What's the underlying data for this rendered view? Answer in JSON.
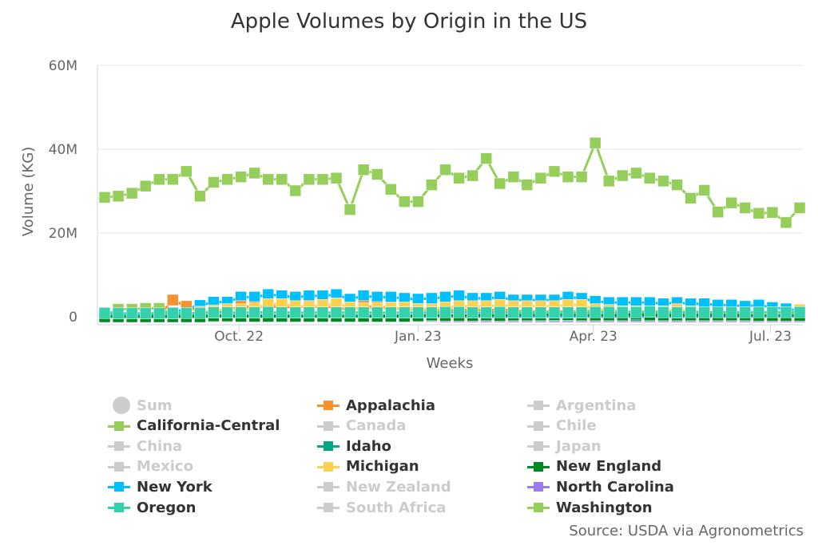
{
  "chart_data": {
    "type": "line",
    "title": "Apple Volumes by Origin in the US",
    "xlabel": "Weeks",
    "ylabel": "Volume (KG)",
    "ylim": [
      0,
      60
    ],
    "y_unit": "M",
    "y_ticks": [
      "0",
      "20M",
      "40M",
      "60M"
    ],
    "y_tick_values": [
      0,
      20,
      40,
      60
    ],
    "x_ticks": [
      {
        "label": "Oct. 22",
        "date": "2022-10-01"
      },
      {
        "label": "Jan. 23",
        "date": "2023-01-01"
      },
      {
        "label": "Apr. 23",
        "date": "2023-04-01"
      },
      {
        "label": "Jul. 23",
        "date": "2023-07-01"
      }
    ],
    "x_start": "2022-07-24",
    "x_interval": "weekly",
    "grid": "horizontal",
    "legend_placement": "bottom",
    "series": [
      {
        "name": "California-Central",
        "color": "#95ce5a",
        "values": [
          0.5,
          1.8,
          1.8,
          2.0,
          2.0,
          0.5,
          0,
          0,
          0,
          0,
          0,
          0,
          0,
          0,
          0,
          0,
          0,
          0,
          0,
          0,
          0,
          0,
          0,
          0,
          0,
          0,
          0,
          0,
          0,
          0,
          0,
          0,
          0,
          0,
          0,
          0,
          0,
          0,
          0,
          0,
          0,
          0,
          0,
          0,
          0,
          0,
          0,
          0,
          0,
          0,
          0,
          0
        ]
      },
      {
        "name": "New York",
        "color": "#00bfff",
        "values": [
          0.3,
          0.4,
          0.4,
          0.6,
          0.8,
          1.0,
          2.0,
          2.7,
          3.5,
          3.5,
          4.7,
          4.7,
          5.3,
          5.0,
          4.7,
          5.0,
          5.0,
          5.3,
          4.2,
          5.0,
          4.7,
          4.7,
          4.4,
          4.2,
          4.4,
          4.7,
          5.0,
          4.4,
          4.4,
          4.7,
          4.0,
          4.0,
          4.0,
          4.0,
          4.7,
          4.4,
          3.7,
          3.4,
          3.4,
          3.4,
          3.4,
          3.1,
          3.4,
          3.1,
          3.1,
          2.8,
          2.8,
          2.5,
          2.8,
          2.2,
          1.9,
          1.5
        ]
      },
      {
        "name": "Appalachia",
        "color": "#f7922e",
        "values": [
          0,
          0,
          0,
          0,
          0.3,
          4.0,
          2.5,
          1.2,
          1.0,
          1.5,
          2.5,
          2.3,
          2.5,
          2.3,
          2.3,
          2.5,
          2.3,
          2.3,
          1.5,
          2.5,
          2.3,
          2.2,
          1.8,
          1.8,
          1.5,
          1.8,
          1.5,
          1.8,
          1.5,
          1.8,
          1.5,
          1.3,
          1.3,
          1.3,
          1.3,
          1.3,
          1.5,
          1.3,
          0.8,
          0.8,
          0.8,
          0.8,
          1.2,
          0.8,
          0.8,
          0.8,
          0.8,
          0.6,
          0.6,
          0.6,
          0.6,
          0.5
        ]
      },
      {
        "name": "Michigan",
        "color": "#ffd04d",
        "values": [
          0,
          0,
          0,
          0,
          0,
          0,
          0.5,
          1.0,
          1.5,
          1.8,
          1.8,
          2.0,
          3.0,
          3.0,
          2.5,
          2.5,
          2.8,
          3.2,
          2.2,
          2.0,
          2.0,
          2.0,
          2.2,
          1.8,
          1.8,
          2.2,
          2.5,
          2.5,
          2.5,
          2.8,
          2.5,
          2.5,
          2.5,
          2.5,
          2.8,
          2.8,
          1.8,
          1.6,
          1.3,
          1.3,
          1.3,
          1.3,
          1.8,
          1.3,
          1.1,
          1.1,
          0.9,
          0.9,
          0.8,
          0.6,
          0.6,
          1.7
        ]
      },
      {
        "name": "North Carolina",
        "color": "#9b7bf0",
        "values": [
          0,
          0,
          0,
          0,
          0,
          0,
          0.1,
          0.1,
          0.1,
          0.1,
          0.1,
          0.1,
          0.1,
          0.1,
          0.1,
          0.1,
          0.1,
          0.1,
          0.1,
          0.1,
          0.1,
          0.1,
          0.1,
          0.1,
          0.1,
          0,
          0,
          0,
          0,
          0,
          0,
          0,
          0,
          0,
          0,
          0,
          0,
          0,
          0,
          0,
          0,
          0,
          0,
          0,
          0,
          0,
          0,
          0,
          0,
          0,
          0,
          0
        ]
      },
      {
        "name": "Idaho",
        "color": "#00a982",
        "values": [
          0.2,
          0.2,
          0.2,
          0.2,
          0.2,
          0.2,
          0.3,
          0.3,
          0.3,
          0.3,
          0.3,
          0.3,
          0.3,
          0.3,
          0.3,
          0.3,
          0.3,
          0.3,
          0.3,
          0.3,
          0.3,
          0.3,
          0.3,
          0.3,
          0.3,
          0.3,
          0.3,
          0.3,
          0.3,
          0.3,
          0.3,
          0.3,
          0.3,
          0.3,
          0.3,
          0.3,
          0.3,
          0.3,
          0.3,
          0.3,
          0.3,
          0.3,
          0.3,
          0.3,
          0.3,
          0.3,
          0.3,
          0.3,
          0.3,
          0.3,
          0.3,
          0.3
        ]
      },
      {
        "name": "New England",
        "color": "#008a20",
        "values": [
          0,
          0,
          0,
          0,
          0,
          0,
          0,
          0,
          0.2,
          0.2,
          0.1,
          0.1,
          0.1,
          0.1,
          0.1,
          0.1,
          0.1,
          0.1,
          0.1,
          0.1,
          0.1,
          0.1,
          0.1,
          0.2,
          0.4,
          0.3,
          0.3,
          0.3,
          0.4,
          0.3,
          0.4,
          0.4,
          0.4,
          0.5,
          0.5,
          0.4,
          0.4,
          0.4,
          0.4,
          0.6,
          0.4,
          0.4,
          0.4,
          0.4,
          0.4,
          0.4,
          0.4,
          0.4,
          0.3,
          0.3,
          0.3,
          0.3
        ]
      },
      {
        "name": "Oregon",
        "color": "#35d0ac",
        "values": [
          0.9,
          0.8,
          0.8,
          0.8,
          0.8,
          0.8,
          0.9,
          0.9,
          1.0,
          1.0,
          1.0,
          1.0,
          1.1,
          1.0,
          1.0,
          1.0,
          1.0,
          1.0,
          1.0,
          1.0,
          1.0,
          1.0,
          1.0,
          1.0,
          1.0,
          1.1,
          1.1,
          1.0,
          1.0,
          1.1,
          1.0,
          1.0,
          1.0,
          1.0,
          1.0,
          1.0,
          1.1,
          1.1,
          1.1,
          1.1,
          1.2,
          1.1,
          1.0,
          1.1,
          1.1,
          1.1,
          1.1,
          1.1,
          1.1,
          1.1,
          1.1,
          1.1
        ]
      },
      {
        "name": "Washington",
        "color": "#95ce5a",
        "values": [
          28.5,
          28.8,
          29.5,
          31.2,
          32.8,
          32.8,
          34.7,
          28.8,
          32.1,
          32.8,
          33.4,
          34.3,
          32.8,
          32.8,
          30.1,
          32.8,
          32.8,
          33.1,
          25.6,
          35.1,
          34.0,
          30.4,
          27.5,
          27.5,
          31.5,
          35.1,
          33.1,
          33.7,
          37.8,
          31.8,
          33.4,
          31.5,
          33.1,
          34.7,
          33.4,
          33.4,
          41.5,
          32.4,
          33.7,
          34.3,
          33.1,
          32.4,
          31.5,
          28.3,
          30.2,
          25.0,
          27.2,
          26.0,
          24.7,
          24.9,
          22.5,
          26.0
        ]
      }
    ]
  },
  "legend": {
    "hidden_color": "#cccccc",
    "items": [
      {
        "label": "Sum",
        "visible": false,
        "symbol": "circle",
        "color": "#cccccc"
      },
      {
        "label": "Appalachia",
        "visible": true,
        "color": "#f7922e"
      },
      {
        "label": "Argentina",
        "visible": false,
        "color": "#cccccc"
      },
      {
        "label": "California-Central",
        "visible": true,
        "color": "#95ce5a"
      },
      {
        "label": "Canada",
        "visible": false,
        "color": "#cccccc"
      },
      {
        "label": "Chile",
        "visible": false,
        "color": "#cccccc"
      },
      {
        "label": "China",
        "visible": false,
        "color": "#cccccc"
      },
      {
        "label": "Idaho",
        "visible": true,
        "color": "#00a982"
      },
      {
        "label": "Japan",
        "visible": false,
        "color": "#cccccc"
      },
      {
        "label": "Mexico",
        "visible": false,
        "color": "#cccccc"
      },
      {
        "label": "Michigan",
        "visible": true,
        "color": "#ffd04d"
      },
      {
        "label": "New England",
        "visible": true,
        "color": "#008a20"
      },
      {
        "label": "New York",
        "visible": true,
        "color": "#00bfff"
      },
      {
        "label": "New Zealand",
        "visible": false,
        "color": "#cccccc"
      },
      {
        "label": "North Carolina",
        "visible": true,
        "color": "#9b7bf0"
      },
      {
        "label": "Oregon",
        "visible": true,
        "color": "#35d0ac"
      },
      {
        "label": "South Africa",
        "visible": false,
        "color": "#cccccc"
      },
      {
        "label": "Washington",
        "visible": true,
        "color": "#95ce5a"
      }
    ]
  },
  "source": "Source: USDA via Agronometrics"
}
